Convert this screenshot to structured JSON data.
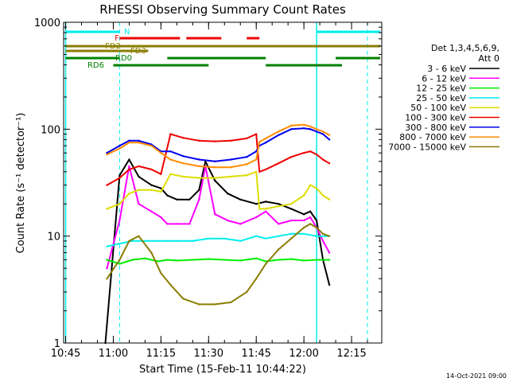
{
  "chart_data": {
    "type": "line",
    "title": "RHESSI Observing Summary Count Rates",
    "xlabel": "Start Time (15-Feb-11 10:44:22)",
    "ylabel": "Count Rate (s⁻¹ detector⁻¹)",
    "y_scale": "log",
    "ylim": [
      1,
      1000
    ],
    "xlim": [
      "10:44:22",
      "12:24:30"
    ],
    "x_ticks": [
      "10:45",
      "11:00",
      "11:15",
      "11:30",
      "11:45",
      "12:00",
      "12:15"
    ],
    "y_ticks": [
      "1",
      "10",
      "100",
      "1000"
    ],
    "legend": {
      "title": [
        "Det 1,3,4,5,6,9,",
        "Att 0"
      ],
      "placement": "right",
      "entries": [
        {
          "label": "3 - 6 keV",
          "color": "#000000"
        },
        {
          "label": "6 - 12 keV",
          "color": "#ff00ff"
        },
        {
          "label": "12 - 25 keV",
          "color": "#00ee00"
        },
        {
          "label": "25 - 50 keV",
          "color": "#00eeee"
        },
        {
          "label": "50 - 100 keV",
          "color": "#dddd00"
        },
        {
          "label": "100 - 300 keV",
          "color": "#ee0000"
        },
        {
          "label": "300 - 800 keV",
          "color": "#0000ee"
        },
        {
          "label": "800 - 7000 keV",
          "color": "#ff8c00"
        },
        {
          "label": "7000 - 15000 keV",
          "color": "#8b7d00"
        }
      ]
    },
    "flag_bars": [
      {
        "label": "N",
        "color": "#00eeee",
        "segments": [
          [
            "10:45",
            "11:02"
          ],
          [
            "12:04",
            "12:24"
          ]
        ]
      },
      {
        "label": "F",
        "color": "#ee0000",
        "segments": [
          [
            "11:02",
            "11:21"
          ],
          [
            "11:23",
            "11:34"
          ],
          [
            "11:42",
            "11:46"
          ]
        ]
      },
      {
        "label": "FD2",
        "color": "#8b7d00",
        "segments": [
          [
            "10:45",
            "12:24"
          ]
        ]
      },
      {
        "label": "FD3",
        "color": "#8b7d00",
        "segments": [
          [
            "10:45",
            "11:11"
          ]
        ]
      },
      {
        "label": "RD0",
        "color": "#008000",
        "segments": [
          [
            "10:45",
            "11:02"
          ],
          [
            "11:17",
            "11:48"
          ],
          [
            "12:10",
            "12:24"
          ]
        ]
      },
      {
        "label": "RD6",
        "color": "#008000",
        "segments": [
          [
            "11:00",
            "11:30"
          ],
          [
            "11:48",
            "12:12"
          ]
        ]
      }
    ],
    "vlines_solid": [
      "10:45",
      "12:04"
    ],
    "vlines_dashed": [
      "11:02",
      "12:20"
    ],
    "series": [
      {
        "name": "3 - 6 keV",
        "color": "#000000",
        "x": [
          "10:57:30",
          "11:02",
          "11:05",
          "11:08",
          "11:12",
          "11:15",
          "11:17",
          "11:20",
          "11:24",
          "11:27",
          "11:29",
          "11:32",
          "11:36",
          "11:40",
          "11:45",
          "11:48",
          "11:52",
          "11:56",
          "12:00",
          "12:02",
          "12:04",
          "12:06",
          "12:08"
        ],
        "values": [
          1.0,
          37,
          52,
          36,
          30,
          28,
          24,
          22,
          22,
          27,
          50,
          33,
          25,
          22,
          20,
          21,
          20,
          18,
          16,
          17,
          14,
          6,
          3.5
        ]
      },
      {
        "name": "6 - 12 keV",
        "color": "#ff00ff",
        "x": [
          "10:58",
          "11:02",
          "11:05",
          "11:08",
          "11:12",
          "11:15",
          "11:17",
          "11:20",
          "11:24",
          "11:27",
          "11:29",
          "11:32",
          "11:36",
          "11:40",
          "11:45",
          "11:48",
          "11:52",
          "11:56",
          "12:00",
          "12:02",
          "12:04",
          "12:06",
          "12:08"
        ],
        "values": [
          5,
          14,
          45,
          20,
          17,
          15,
          13,
          13,
          13,
          22,
          45,
          16,
          14,
          13,
          15,
          17,
          13,
          14,
          14,
          15,
          12,
          9,
          7
        ]
      },
      {
        "name": "12 - 25 keV",
        "color": "#00ee00",
        "x": [
          "10:58",
          "11:02",
          "11:06",
          "11:10",
          "11:14",
          "11:17",
          "11:20",
          "11:25",
          "11:30",
          "11:35",
          "11:40",
          "11:45",
          "11:48",
          "11:52",
          "11:56",
          "12:00",
          "12:04",
          "12:08"
        ],
        "values": [
          6,
          5.5,
          6,
          6.2,
          5.8,
          6,
          5.9,
          6.0,
          6.1,
          6.0,
          5.9,
          6.2,
          5.8,
          6.0,
          6.1,
          5.9,
          6.0,
          6.0
        ]
      },
      {
        "name": "25 - 50 keV",
        "color": "#00eeee",
        "x": [
          "10:58",
          "11:02",
          "11:06",
          "11:10",
          "11:14",
          "11:17",
          "11:20",
          "11:25",
          "11:30",
          "11:35",
          "11:40",
          "11:45",
          "11:48",
          "11:52",
          "11:56",
          "12:00",
          "12:04",
          "12:08"
        ],
        "values": [
          8,
          8.5,
          9,
          9,
          9,
          9,
          9,
          9,
          9.5,
          9.5,
          9,
          10,
          9.5,
          10,
          10.5,
          10.5,
          10,
          10
        ]
      },
      {
        "name": "50 - 100 keV",
        "color": "#dddd00",
        "x": [
          "10:58",
          "11:02",
          "11:05",
          "11:08",
          "11:12",
          "11:15",
          "11:18",
          "11:22",
          "11:27",
          "11:32",
          "11:37",
          "11:42",
          "11:45",
          "11:46",
          "11:48",
          "11:52",
          "11:56",
          "12:00",
          "12:02",
          "12:04",
          "12:06",
          "12:08"
        ],
        "values": [
          18,
          20,
          25,
          27,
          27,
          26,
          38,
          36,
          35,
          35,
          36,
          37,
          40,
          18,
          18,
          19,
          20,
          24,
          30,
          28,
          24,
          22
        ]
      },
      {
        "name": "100 - 300 keV",
        "color": "#ee0000",
        "x": [
          "10:58",
          "11:02",
          "11:05",
          "11:08",
          "11:12",
          "11:15",
          "11:18",
          "11:22",
          "11:27",
          "11:32",
          "11:37",
          "11:42",
          "11:45",
          "11:46",
          "11:48",
          "11:52",
          "11:56",
          "12:00",
          "12:02",
          "12:04",
          "12:06",
          "12:08"
        ],
        "values": [
          30,
          35,
          42,
          45,
          42,
          38,
          90,
          83,
          78,
          77,
          78,
          82,
          90,
          40,
          42,
          48,
          55,
          60,
          62,
          58,
          52,
          48
        ]
      },
      {
        "name": "300 - 800 keV",
        "color": "#0000ee",
        "x": [
          "10:58",
          "11:02",
          "11:05",
          "11:08",
          "11:12",
          "11:15",
          "11:18",
          "11:22",
          "11:27",
          "11:32",
          "11:37",
          "11:42",
          "11:45",
          "11:46",
          "11:48",
          "11:52",
          "11:56",
          "12:00",
          "12:02",
          "12:04",
          "12:06",
          "12:08"
        ],
        "values": [
          60,
          70,
          78,
          78,
          72,
          62,
          62,
          56,
          52,
          50,
          52,
          55,
          62,
          70,
          75,
          88,
          100,
          102,
          100,
          95,
          90,
          80
        ]
      },
      {
        "name": "800 - 7000 keV",
        "color": "#ff8c00",
        "x": [
          "10:58",
          "11:02",
          "11:05",
          "11:08",
          "11:12",
          "11:15",
          "11:18",
          "11:22",
          "11:27",
          "11:32",
          "11:37",
          "11:42",
          "11:45",
          "11:46",
          "11:48",
          "11:52",
          "11:56",
          "12:00",
          "12:02",
          "12:04",
          "12:06",
          "12:08"
        ],
        "values": [
          58,
          66,
          75,
          75,
          70,
          60,
          52,
          48,
          45,
          44,
          44,
          47,
          52,
          76,
          82,
          95,
          108,
          110,
          106,
          100,
          95,
          88
        ]
      },
      {
        "name": "7000 - 15000 keV",
        "color": "#8b7d00",
        "x": [
          "10:58",
          "11:02",
          "11:05",
          "11:08",
          "11:12",
          "11:15",
          "11:18",
          "11:22",
          "11:27",
          "11:32",
          "11:37",
          "11:42",
          "11:45",
          "11:48",
          "11:52",
          "11:56",
          "12:00",
          "12:02",
          "12:04",
          "12:06",
          "12:08"
        ],
        "values": [
          4,
          6,
          9,
          10,
          7,
          4.5,
          3.5,
          2.6,
          2.3,
          2.3,
          2.4,
          3.0,
          4.0,
          5.5,
          7.5,
          9.5,
          12,
          13,
          12,
          10.5,
          10
        ]
      }
    ]
  },
  "footer": {
    "timestamp": "14-Oct-2021 09:00"
  }
}
